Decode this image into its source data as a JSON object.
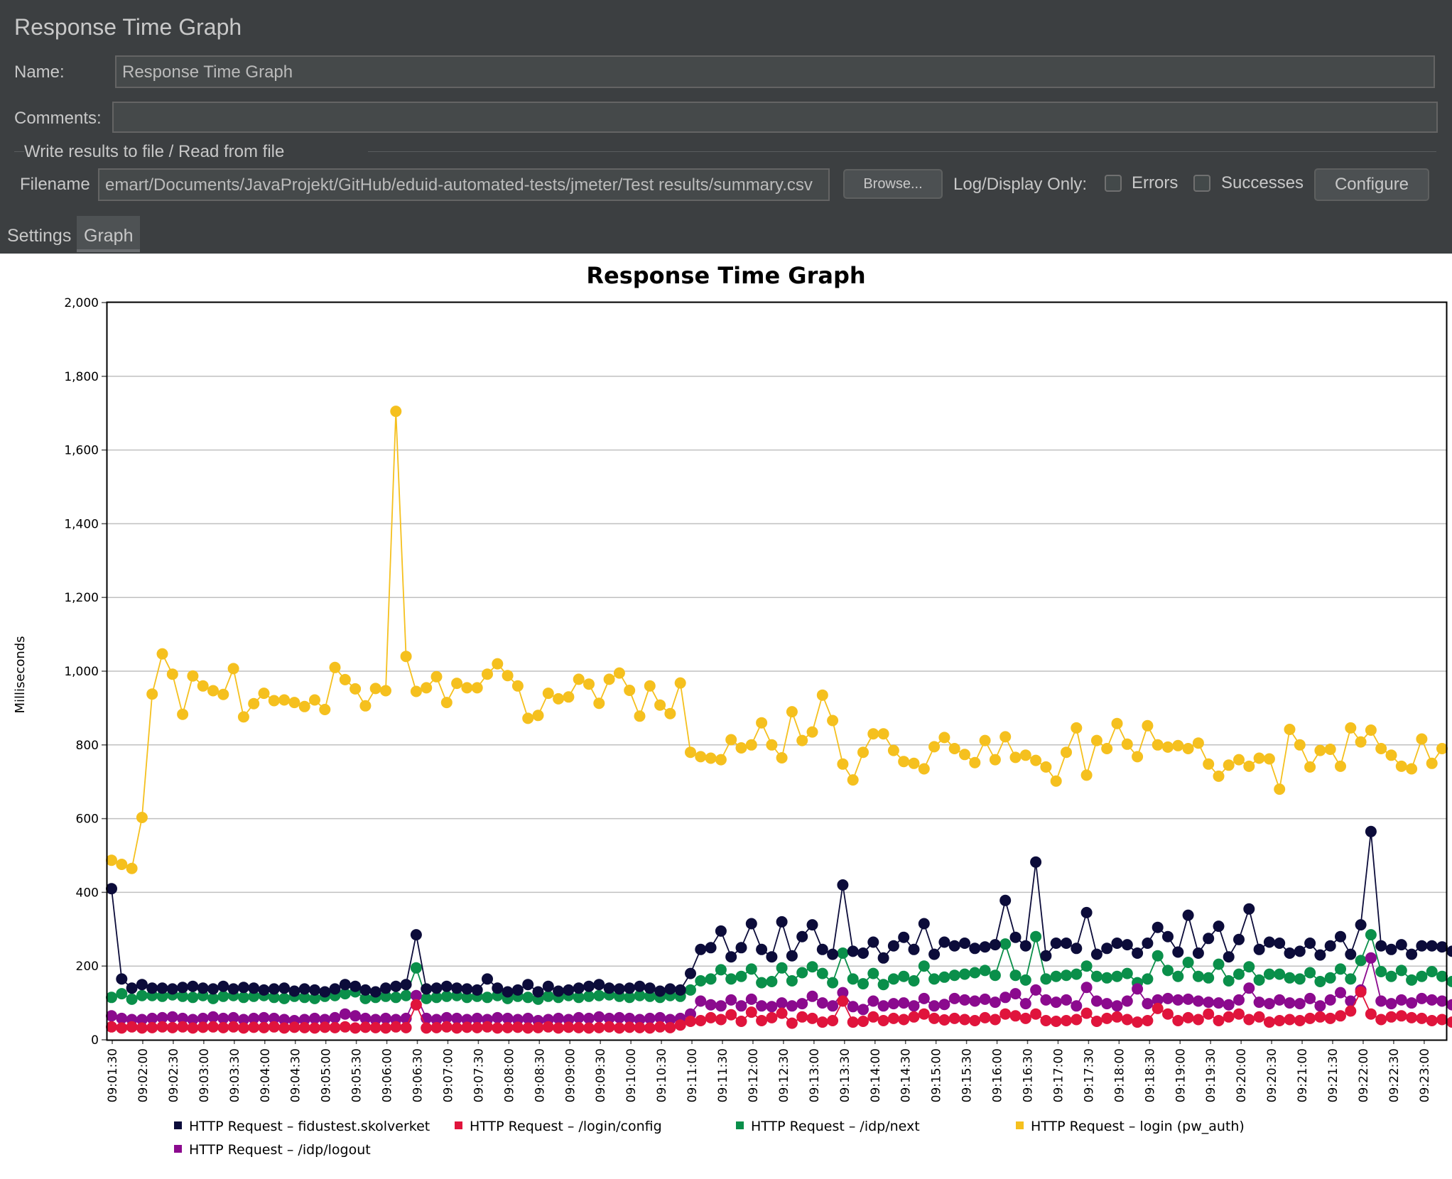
{
  "window": {
    "title": "Response Time Graph"
  },
  "form": {
    "name_label": "Name:",
    "name_value": "Response Time Graph",
    "comments_label": "Comments:",
    "comments_value": "",
    "file_section_title": "Write results to file / Read from file",
    "filename_label": "Filename",
    "filename_value": "emart/Documents/JavaProjekt/GitHub/eduid-automated-tests/jmeter/Test results/summary.csv",
    "browse_label": "Browse...",
    "log_display_label": "Log/Display Only:",
    "errors_label": "Errors",
    "successes_label": "Successes",
    "configure_label": "Configure"
  },
  "tabs": [
    {
      "label": "Settings",
      "active": false
    },
    {
      "label": "Graph",
      "active": true
    }
  ],
  "chart_data": {
    "type": "line",
    "title": "Response Time Graph",
    "xlabel": "",
    "ylabel": "Milliseconds",
    "ylim": [
      0,
      2000
    ],
    "y_ticks": [
      "0",
      "200",
      "400",
      "600",
      "800",
      "1,000",
      "1,200",
      "1,400",
      "1,600",
      "1,800",
      "2,000"
    ],
    "x_ticks": [
      "09:01:30",
      "09:02:00",
      "09:02:30",
      "09:03:00",
      "09:03:30",
      "09:04:00",
      "09:04:30",
      "09:05:00",
      "09:05:30",
      "09:06:00",
      "09:06:30",
      "09:07:00",
      "09:07:30",
      "09:08:00",
      "09:08:30",
      "09:09:00",
      "09:09:30",
      "09:10:00",
      "09:10:30",
      "09:11:00",
      "09:11:30",
      "09:12:00",
      "09:12:30",
      "09:13:00",
      "09:13:30",
      "09:14:00",
      "09:14:30",
      "09:15:00",
      "09:15:30",
      "09:16:00",
      "09:16:30",
      "09:17:00",
      "09:17:30",
      "09:18:00",
      "09:18:30",
      "09:19:00",
      "09:19:30",
      "09:20:00",
      "09:20:30",
      "09:21:00",
      "09:21:30",
      "09:22:00",
      "09:22:30",
      "09:23:00"
    ],
    "grid": true,
    "legend_position": "bottom",
    "series": [
      {
        "name": "HTTP Request – fidustest.skolverket",
        "color": "#0c0c3a",
        "values": [
          410,
          165,
          140,
          150,
          140,
          140,
          138,
          142,
          145,
          140,
          138,
          145,
          138,
          142,
          140,
          135,
          138,
          140,
          132,
          138,
          135,
          130,
          138,
          150,
          145,
          135,
          130,
          140,
          145,
          150,
          285,
          138,
          140,
          145,
          140,
          138,
          135,
          165,
          140,
          130,
          135,
          150,
          130,
          145,
          132,
          135,
          140,
          145,
          150,
          140,
          138,
          140,
          145,
          140,
          132,
          138,
          135,
          180,
          245,
          250,
          295,
          225,
          250,
          315,
          245,
          225,
          320,
          228,
          280,
          312,
          245,
          232,
          420,
          240,
          235,
          265,
          222,
          255,
          278,
          245,
          315,
          232,
          265,
          255,
          262,
          248,
          252,
          258,
          378,
          278,
          255,
          482,
          228,
          262,
          262,
          248,
          345,
          232,
          248,
          262,
          258,
          235,
          262,
          305,
          280,
          238,
          338,
          235,
          275,
          308,
          225,
          272,
          355,
          245,
          265,
          262,
          235,
          240,
          262,
          230,
          255,
          280,
          232,
          312,
          565,
          255,
          245,
          258,
          232,
          255,
          255,
          252,
          240
        ],
        "x_offset": 0
      },
      {
        "name": "HTTP Request – /login/config",
        "color": "#e0143c",
        "values": [
          35,
          32,
          35,
          32,
          33,
          35,
          33,
          35,
          32,
          34,
          35,
          33,
          35,
          32,
          34,
          33,
          35,
          32,
          34,
          33,
          32,
          34,
          33,
          35,
          32,
          34,
          33,
          32,
          35,
          33,
          95,
          32,
          33,
          35,
          32,
          34,
          33,
          35,
          32,
          33,
          34,
          32,
          33,
          35,
          32,
          34,
          33,
          32,
          33,
          35,
          32,
          34,
          33,
          32,
          35,
          33,
          40,
          50,
          52,
          60,
          55,
          68,
          50,
          75,
          52,
          60,
          72,
          45,
          62,
          58,
          48,
          52,
          105,
          48,
          50,
          62,
          52,
          58,
          55,
          62,
          70,
          58,
          54,
          58,
          55,
          52,
          60,
          55,
          70,
          65,
          58,
          70,
          52,
          50,
          52,
          55,
          72,
          50,
          58,
          62,
          55,
          48,
          52,
          85,
          70,
          52,
          60,
          55,
          70,
          52,
          62,
          70,
          55,
          62,
          48,
          52,
          55,
          52,
          58,
          62,
          58,
          65,
          78,
          130,
          70,
          55,
          62,
          65,
          60,
          58,
          52,
          55,
          48
        ],
        "x_offset": 0
      },
      {
        "name": "HTTP Request – /idp/next",
        "color": "#0a8f4a",
        "values": [
          115,
          125,
          110,
          120,
          120,
          118,
          122,
          118,
          115,
          120,
          112,
          118,
          120,
          115,
          118,
          120,
          115,
          112,
          118,
          115,
          112,
          118,
          120,
          125,
          130,
          112,
          115,
          118,
          115,
          120,
          195,
          112,
          115,
          118,
          120,
          115,
          118,
          115,
          120,
          112,
          118,
          115,
          110,
          118,
          115,
          120,
          115,
          118,
          120,
          122,
          118,
          115,
          120,
          118,
          115,
          120,
          118,
          135,
          160,
          165,
          190,
          165,
          172,
          192,
          155,
          158,
          195,
          160,
          182,
          198,
          180,
          155,
          235,
          165,
          152,
          180,
          150,
          165,
          172,
          160,
          200,
          165,
          170,
          175,
          178,
          182,
          188,
          175,
          260,
          175,
          162,
          280,
          165,
          172,
          175,
          178,
          200,
          172,
          168,
          172,
          180,
          155,
          165,
          228,
          188,
          172,
          210,
          172,
          168,
          205,
          160,
          178,
          198,
          162,
          178,
          178,
          168,
          165,
          182,
          158,
          168,
          192,
          165,
          215,
          285,
          185,
          172,
          188,
          162,
          172,
          185,
          172,
          158
        ],
        "x_offset": 0
      },
      {
        "name": "HTTP Request – login (pw_auth)",
        "color": "#f5c01e",
        "values": [
          487,
          476,
          465,
          603,
          938,
          1047,
          992,
          883,
          987,
          960,
          947,
          937,
          1007,
          876,
          912,
          940,
          920,
          922,
          915,
          904,
          922,
          896,
          1010,
          977,
          952,
          906,
          953,
          947,
          1705,
          1040,
          945,
          955,
          985,
          915,
          967,
          955,
          955,
          992,
          1020,
          988,
          960,
          872,
          880,
          940,
          925,
          930,
          978,
          965,
          913,
          978,
          995,
          948,
          878,
          960,
          908,
          885,
          968,
          780,
          768,
          764,
          760,
          814,
          792,
          800,
          860,
          800,
          765,
          890,
          812,
          835,
          935,
          866,
          748,
          705,
          780,
          830,
          830,
          785,
          755,
          750,
          735,
          795,
          820,
          790,
          774,
          752,
          812,
          760,
          822,
          766,
          772,
          758,
          740,
          702,
          780,
          846,
          718,
          812,
          790,
          858,
          802,
          768,
          852,
          800,
          794,
          798,
          790,
          805,
          748,
          715,
          745,
          760,
          742,
          764,
          762,
          680,
          842,
          800,
          740,
          785,
          788,
          742,
          846,
          808,
          840,
          790,
          772,
          742,
          735,
          816,
          750,
          790
        ],
        "x_offset": 0
      },
      {
        "name": "HTTP Request – /idp/logout",
        "color": "#8b0a8e",
        "values": [
          65,
          58,
          55,
          55,
          58,
          60,
          62,
          58,
          55,
          58,
          62,
          58,
          60,
          55,
          58,
          60,
          58,
          55,
          52,
          55,
          58,
          55,
          60,
          70,
          65,
          58,
          55,
          58,
          55,
          58,
          120,
          58,
          55,
          60,
          58,
          55,
          58,
          55,
          60,
          58,
          55,
          58,
          52,
          55,
          58,
          55,
          60,
          58,
          62,
          58,
          60,
          58,
          55,
          58,
          60,
          55,
          58,
          70,
          105,
          95,
          92,
          108,
          92,
          110,
          92,
          90,
          100,
          92,
          98,
          118,
          100,
          92,
          128,
          90,
          82,
          105,
          92,
          98,
          100,
          92,
          112,
          92,
          96,
          112,
          108,
          105,
          110,
          102,
          115,
          125,
          98,
          135,
          108,
          102,
          108,
          92,
          142,
          105,
          98,
          92,
          105,
          138,
          98,
          108,
          112,
          108,
          110,
          105,
          102,
          100,
          95,
          108,
          140,
          102,
          98,
          108,
          100,
          98,
          112,
          92,
          108,
          128,
          105,
          135,
          222,
          105,
          98,
          108,
          100,
          112,
          108,
          105,
          95
        ],
        "x_offset": 0
      }
    ]
  }
}
